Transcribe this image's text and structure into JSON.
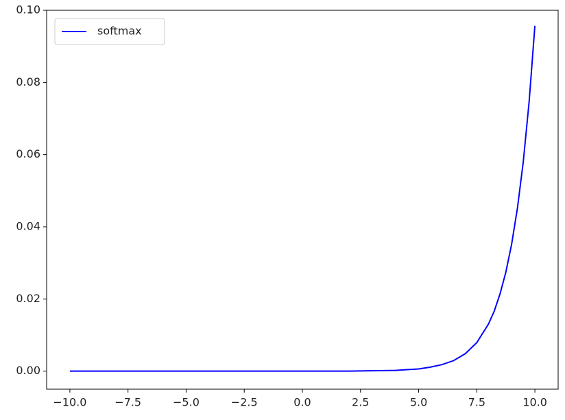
{
  "chart_data": {
    "type": "line",
    "x": [
      -10,
      -8,
      -6,
      -4,
      -2,
      0,
      1,
      2,
      3,
      4,
      4.5,
      5,
      5.5,
      6,
      6.5,
      7,
      7.5,
      8,
      8.25,
      8.5,
      8.75,
      9,
      9.25,
      9.5,
      9.75,
      10
    ],
    "series": [
      {
        "name": "softmax",
        "color": "#0000ff",
        "values": [
          0,
          0,
          0,
          0,
          0,
          0,
          0,
          0,
          0.0001,
          0.0002,
          0.0004,
          0.0006,
          0.0011,
          0.0018,
          0.0029,
          0.0048,
          0.0079,
          0.013,
          0.0166,
          0.0214,
          0.0274,
          0.0352,
          0.0452,
          0.058,
          0.0745,
          0.0957
        ]
      }
    ],
    "xlim": [
      -11,
      11
    ],
    "xticks": [
      {
        "value": -10,
        "label": "−10.0"
      },
      {
        "value": -7.5,
        "label": "−7.5"
      },
      {
        "value": -5,
        "label": "−5.0"
      },
      {
        "value": -2.5,
        "label": "−2.5"
      },
      {
        "value": 0,
        "label": "0.0"
      },
      {
        "value": 2.5,
        "label": "2.5"
      },
      {
        "value": 5,
        "label": "5.0"
      },
      {
        "value": 7.5,
        "label": "7.5"
      },
      {
        "value": 10,
        "label": "10.0"
      }
    ],
    "ylim": [
      -0.005,
      0.1
    ],
    "yticks": [
      {
        "value": 0,
        "label": "0.00"
      },
      {
        "value": 0.02,
        "label": "0.02"
      },
      {
        "value": 0.04,
        "label": "0.04"
      },
      {
        "value": 0.06,
        "label": "0.06"
      },
      {
        "value": 0.08,
        "label": "0.08"
      },
      {
        "value": 0.1,
        "label": "0.10"
      }
    ],
    "legend": "upper left"
  }
}
